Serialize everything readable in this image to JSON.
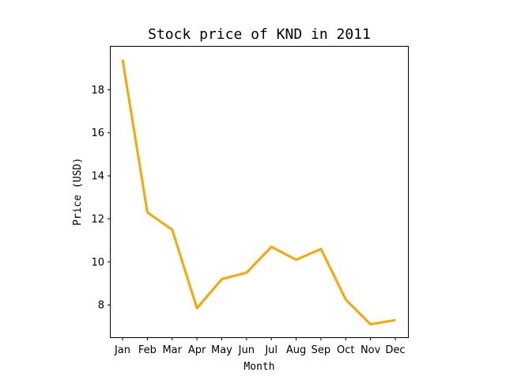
{
  "chart_data": {
    "type": "line",
    "title": "Stock price of KND in 2011",
    "xlabel": "Month",
    "ylabel": "Price (USD)",
    "categories": [
      "Jan",
      "Feb",
      "Mar",
      "Apr",
      "May",
      "Jun",
      "Jul",
      "Aug",
      "Sep",
      "Oct",
      "Nov",
      "Dec"
    ],
    "series": [
      {
        "color": "#FFA500",
        "values": [
          19.4,
          12.3,
          11.5,
          7.85,
          9.2,
          9.5,
          10.7,
          10.1,
          10.6,
          8.25,
          7.1,
          7.3
        ]
      }
    ],
    "yticks": [
      8,
      10,
      12,
      14,
      16,
      18
    ],
    "ylim": [
      6.5,
      20.0
    ],
    "grid": false,
    "legend": "none"
  }
}
